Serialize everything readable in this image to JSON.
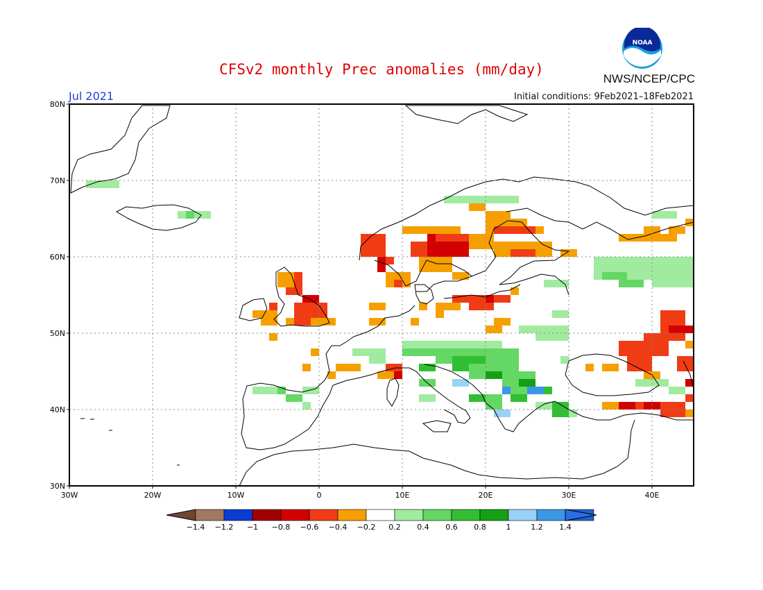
{
  "header": {
    "title": "CFSv2 monthly Prec anomalies (mm/day)",
    "month": "Jul 2021",
    "initial_conditions": "Initial conditions: 9Feb2021–18Feb2021",
    "agency": "NWS/NCEP/CPC",
    "logo_text": "NOAA"
  },
  "map": {
    "lon_range": [
      -30,
      45
    ],
    "lat_range": [
      30,
      80
    ],
    "lon_ticks": [
      "30W",
      "20W",
      "10W",
      "0",
      "10E",
      "20E",
      "30E",
      "40E"
    ],
    "lat_ticks": [
      "80N",
      "70N",
      "60N",
      "50N",
      "40N",
      "30N"
    ],
    "grid_style": "dotted"
  },
  "legend": {
    "labels": [
      "-1.4",
      "-1.2",
      "-1",
      "-0.8",
      "-0.6",
      "-0.4",
      "-0.2",
      "0.2",
      "0.4",
      "0.6",
      "0.8",
      "1",
      "1.2",
      "1.4"
    ],
    "colors": [
      "#a07864",
      "#0a3cd2",
      "#a00000",
      "#d20000",
      "#f03c14",
      "#f5a000",
      "#ffffff",
      "#a0eba0",
      "#64d764",
      "#32be32",
      "#14a014",
      "#9ad2f5",
      "#3c96e6",
      "#1e64d2"
    ],
    "low_end_color": "#6e4632",
    "high_end_color": "#2a6ee6"
  }
}
